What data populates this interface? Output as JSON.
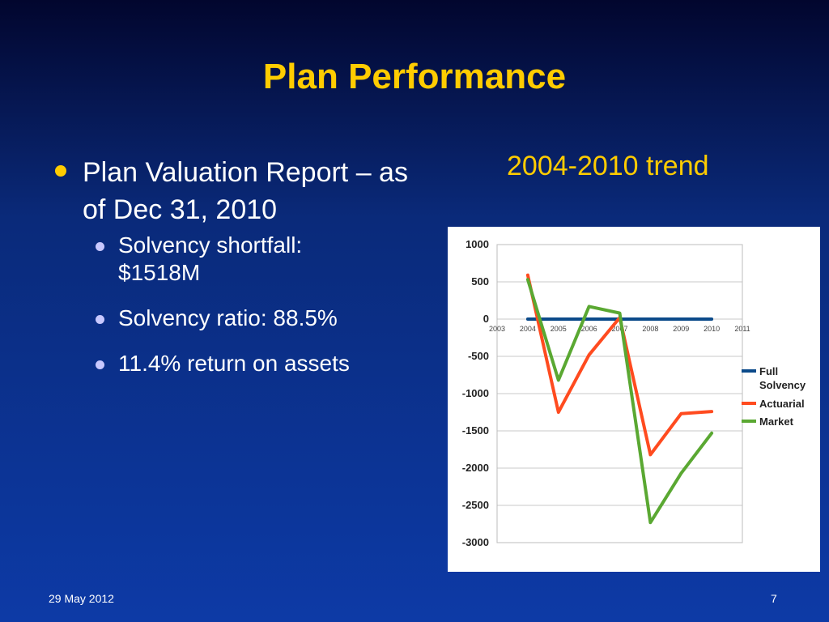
{
  "slide": {
    "title": "Plan Performance",
    "subtitle": "2004-2010 trend",
    "footer_date": "29 May 2012",
    "page_number": "7"
  },
  "bullets": {
    "main": "Plan Valuation Report – as of Dec 31, 2010",
    "items": [
      "Solvency shortfall: $1518M",
      "Solvency ratio: 88.5%",
      "11.4% return on assets"
    ]
  },
  "colors": {
    "title": "#ffcc00",
    "full_solvency": "#0b4a8a",
    "actuarial": "#ff4b1f",
    "market": "#5aa832"
  },
  "chart_data": {
    "type": "line",
    "title": "",
    "xlabel": "",
    "ylabel": "",
    "x_ticks": [
      "2003",
      "2004",
      "2005",
      "2006",
      "2007",
      "2008",
      "2009",
      "2010",
      "2011"
    ],
    "y_ticks": [
      1000,
      500,
      0,
      -500,
      -1000,
      -1500,
      -2000,
      -2500,
      -3000
    ],
    "xlim": [
      2003,
      2011
    ],
    "ylim": [
      -3000,
      1000
    ],
    "grid": true,
    "legend_position": "right",
    "series": [
      {
        "name": "Full Solvency",
        "color": "#0b4a8a",
        "x": [
          2004,
          2005,
          2006,
          2007,
          2008,
          2009,
          2010
        ],
        "values": [
          0,
          0,
          0,
          0,
          0,
          0,
          0
        ]
      },
      {
        "name": "Actuarial",
        "color": "#ff4b1f",
        "x": [
          2004,
          2005,
          2006,
          2007,
          2008,
          2009,
          2010
        ],
        "values": [
          590,
          -1250,
          -480,
          20,
          -1820,
          -1270,
          -1240
        ]
      },
      {
        "name": "Market",
        "color": "#5aa832",
        "x": [
          2004,
          2005,
          2006,
          2007,
          2008,
          2009,
          2010
        ],
        "values": [
          530,
          -820,
          170,
          80,
          -2730,
          -2070,
          -1530
        ]
      }
    ]
  }
}
